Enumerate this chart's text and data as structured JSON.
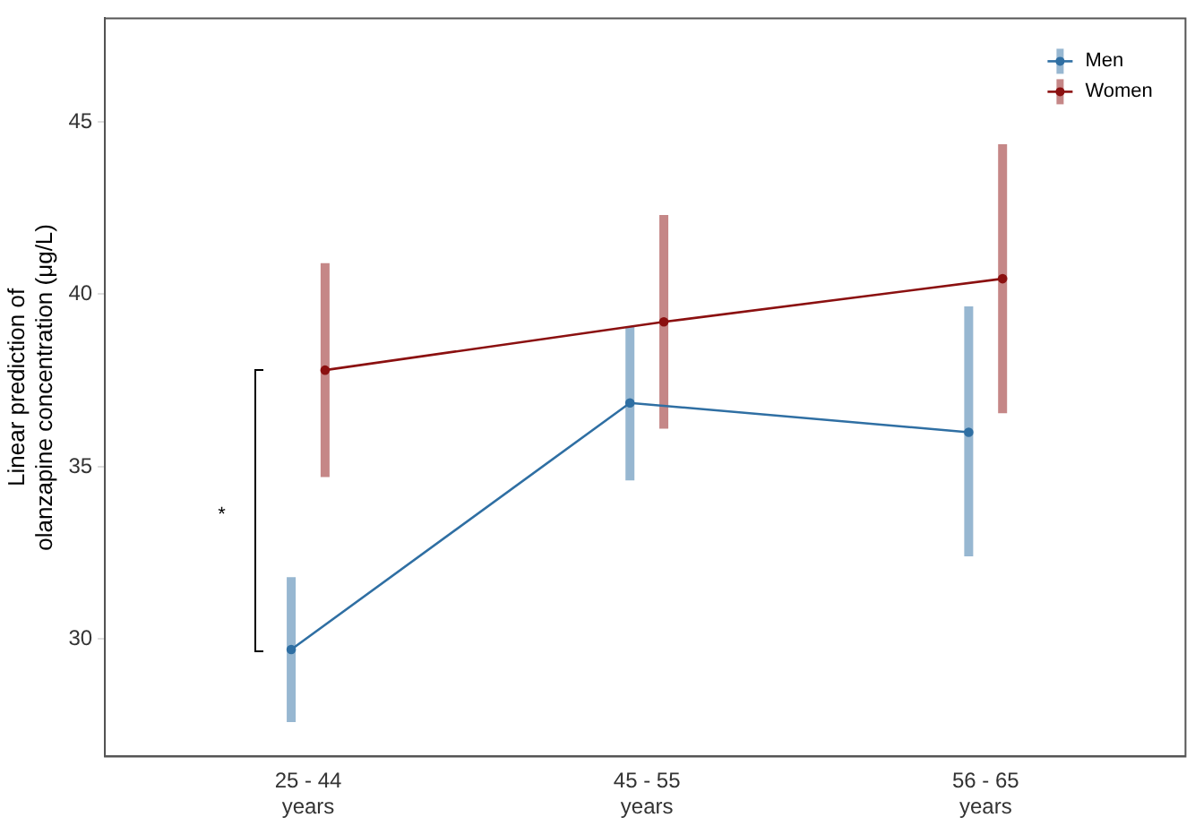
{
  "chart_data": {
    "type": "line",
    "categories": [
      "25 - 44\nyears",
      "45 - 55\nyears",
      "56 - 65\nyears"
    ],
    "ylabel": "Linear prediction of\nolanzapine concentration (μg/L)",
    "ylim": [
      26.6,
      48
    ],
    "yticks": [
      30,
      35,
      40,
      45
    ],
    "grid": false,
    "legend": "top right",
    "marker": "circle",
    "series": [
      {
        "name": "Men",
        "color": "#2f6fa3",
        "values": [
          29.7,
          36.85,
          36.0
        ],
        "errors": [
          [
            27.6,
            31.8
          ],
          [
            34.6,
            39.05
          ],
          [
            32.4,
            39.65
          ]
        ]
      },
      {
        "name": "Women",
        "color": "#8b1010",
        "values": [
          37.8,
          39.2,
          40.45
        ],
        "errors": [
          [
            34.7,
            40.9
          ],
          [
            36.1,
            42.3
          ],
          [
            36.55,
            44.35
          ]
        ]
      }
    ],
    "annotations": [
      "*"
    ]
  }
}
